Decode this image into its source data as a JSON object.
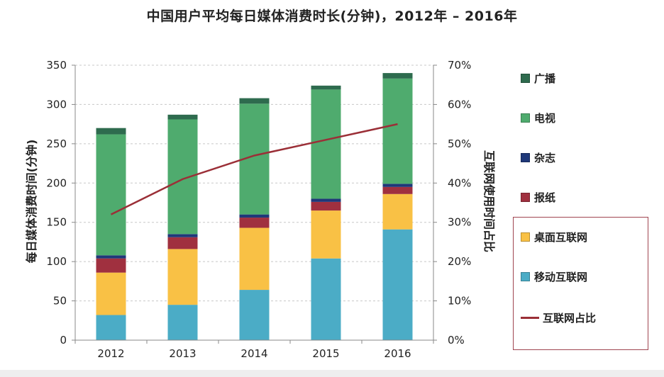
{
  "chart_data": {
    "type": "bar",
    "stacked": true,
    "title": "中国用户平均每日媒体消费时长(分钟)，2012年 – 2016年",
    "categories": [
      "2012",
      "2013",
      "2014",
      "2015",
      "2016"
    ],
    "ylabel": "每日媒体消费时间(分钟)",
    "y2label": "互联网使用时间占比",
    "ylim": [
      0,
      350
    ],
    "yticks": [
      "0",
      "50",
      "100",
      "150",
      "200",
      "250",
      "300",
      "350"
    ],
    "y2lim": [
      0,
      70
    ],
    "y2ticks": [
      "0%",
      "10%",
      "20%",
      "30%",
      "40%",
      "50%",
      "60%",
      "70%"
    ],
    "grid": true,
    "legend_position": "right",
    "series": [
      {
        "name": "移动互联网",
        "color": "#4bacc6",
        "values": [
          32,
          45,
          64,
          104,
          141
        ]
      },
      {
        "name": "桌面互联网",
        "color": "#f9c145",
        "values": [
          54,
          71,
          79,
          61,
          45
        ]
      },
      {
        "name": "报纸",
        "color": "#a0303f",
        "values": [
          18,
          15,
          13,
          11,
          9
        ]
      },
      {
        "name": "杂志",
        "color": "#1f3879",
        "values": [
          4,
          4,
          4,
          4,
          4
        ]
      },
      {
        "name": "电视",
        "color": "#4fab6e",
        "values": [
          154,
          146,
          141,
          139,
          134
        ]
      },
      {
        "name": "广播",
        "color": "#2e6b4e",
        "values": [
          8,
          6,
          7,
          5,
          7
        ]
      }
    ],
    "line": {
      "name": "互联网占比",
      "color": "#9b2f37",
      "values_pct": [
        32,
        41,
        47,
        51,
        55
      ]
    },
    "legend_order": [
      "广播",
      "电视",
      "杂志",
      "报纸",
      "桌面互联网",
      "移动互联网",
      "互联网占比"
    ]
  }
}
